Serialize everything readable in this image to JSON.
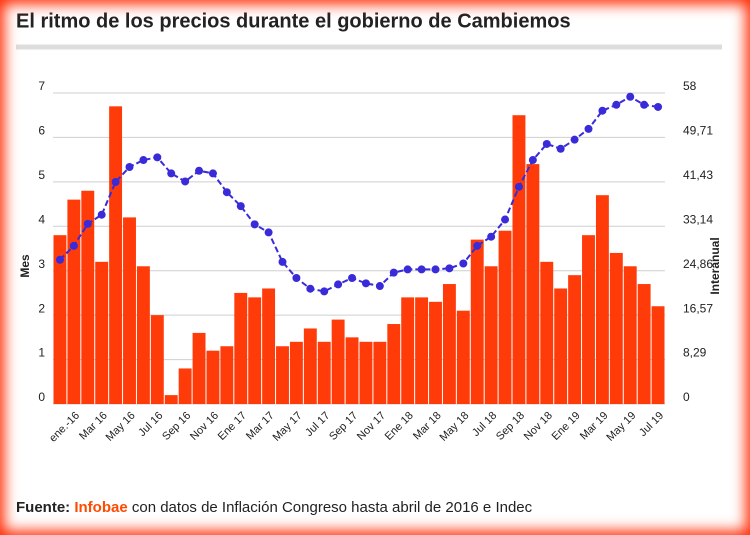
{
  "chart_data": {
    "type": "bar",
    "title": "El ritmo de los precios durante el gobierno de Cambiemos",
    "ylabel": "Mes",
    "y2label": "Interanual",
    "source_label": "Fuente:",
    "source": "Infobae",
    "source_text": "con datos de Inflación Congreso hasta abril de 2016 e Indec",
    "categories": [
      null,
      "ene.-16",
      null,
      "Mar 16",
      null,
      "May 16",
      null,
      "Jul 16",
      null,
      "Sep 16",
      null,
      "Nov 16",
      null,
      "Ene 17",
      null,
      "Mar 17",
      null,
      "May 17",
      null,
      "Jul 17",
      null,
      "Sep 17",
      null,
      "Nov 17",
      null,
      "Ene 18",
      null,
      "Mar 18",
      null,
      "May 18",
      null,
      "Jul 18",
      null,
      "Sep 18",
      null,
      "Nov 18",
      null,
      "Ene 19",
      null,
      "Mar 19",
      null,
      "May 19",
      null,
      "Jul 19"
    ],
    "series": [
      {
        "type": "bar",
        "color": "#ff3b0a",
        "values": [
          3.8,
          4.6,
          4.8,
          3.2,
          6.7,
          4.2,
          3.1,
          2.0,
          0.2,
          0.8,
          1.6,
          1.2,
          1.3,
          2.5,
          2.4,
          2.6,
          1.3,
          1.4,
          1.7,
          1.4,
          1.9,
          1.5,
          1.4,
          1.4,
          1.8,
          2.4,
          2.4,
          2.3,
          2.7,
          2.1,
          3.7,
          3.1,
          3.9,
          6.5,
          5.4,
          3.2,
          2.6,
          2.9,
          3.8,
          4.7,
          3.4,
          3.1,
          2.7,
          2.2
        ]
      },
      {
        "type": "line",
        "axis": "y2",
        "color": "#3a2bd8",
        "values": [
          26.9,
          29.5,
          33.6,
          35.3,
          41.4,
          44.2,
          45.5,
          46.0,
          43.0,
          41.5,
          43.5,
          43.0,
          39.5,
          36.9,
          33.5,
          32.0,
          26.5,
          23.5,
          21.5,
          21.0,
          22.3,
          23.5,
          22.5,
          22.0,
          24.5,
          25.1,
          25.1,
          25.1,
          25.3,
          26.2,
          29.5,
          31.2,
          34.4,
          40.5,
          45.5,
          48.5,
          47.6,
          49.3,
          51.3,
          54.7,
          55.8,
          57.3,
          55.8,
          55.4
        ]
      }
    ],
    "ylim": [
      0,
      7
    ],
    "yticks": [
      0,
      1,
      2,
      3,
      4,
      5,
      6,
      7
    ],
    "y2lim": [
      0,
      58
    ],
    "y2ticks": [
      0,
      {
        "value": 8.29,
        "label": "8,29"
      },
      {
        "value": 16.57,
        "label": "16,57"
      },
      {
        "value": 24.86,
        "label": "24,86"
      },
      {
        "value": 33.14,
        "label": "33,14"
      },
      {
        "value": 41.43,
        "label": "41,43"
      },
      {
        "value": 49.71,
        "label": "49,71"
      },
      58
    ],
    "grid": true
  }
}
